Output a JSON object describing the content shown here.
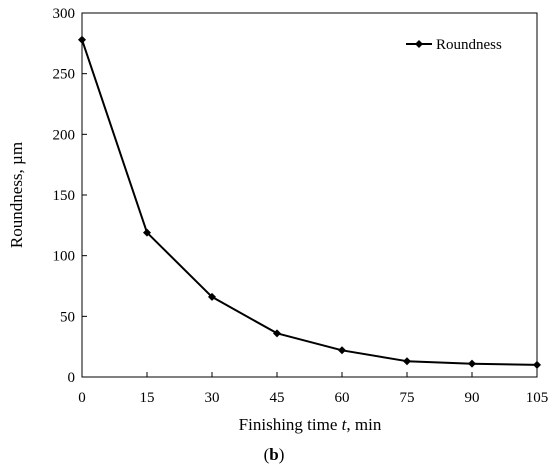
{
  "chart_data": {
    "type": "line",
    "x": [
      0,
      15,
      30,
      45,
      60,
      75,
      90,
      105
    ],
    "series": [
      {
        "name": "Roundness",
        "values": [
          278,
          119,
          66,
          36,
          22,
          13,
          11,
          10
        ],
        "color": "#000000",
        "marker": "diamond"
      }
    ],
    "xlabel_prefix": "Finishing time ",
    "xlabel_var": "t",
    "xlabel_suffix": ", min",
    "ylabel": "Roundness,  µm",
    "xlim": [
      0,
      105
    ],
    "ylim": [
      0,
      300
    ],
    "xticks": [
      "0",
      "15",
      "30",
      "45",
      "60",
      "75",
      "90",
      "105"
    ],
    "yticks": [
      "0",
      "50",
      "100",
      "150",
      "200",
      "250",
      "300"
    ],
    "grid": false,
    "legend": "top-right"
  },
  "caption": {
    "open": "(",
    "letter": "b",
    "close": ")"
  }
}
